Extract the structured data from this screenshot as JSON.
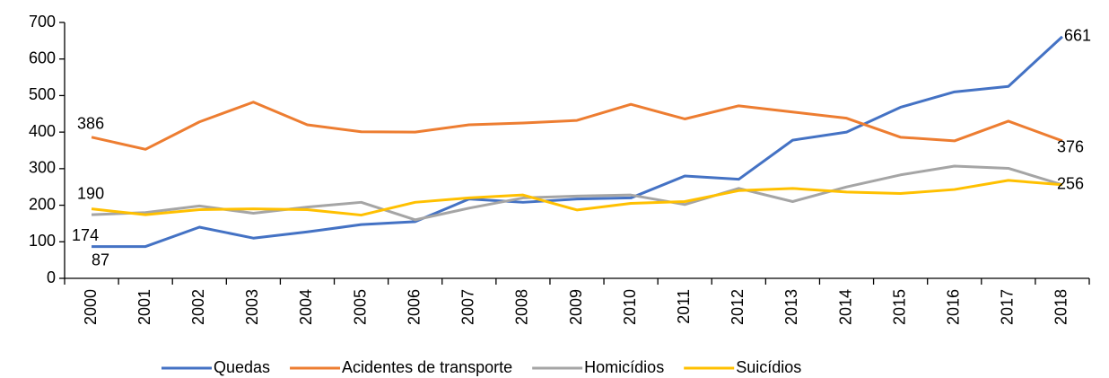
{
  "chart_data": {
    "type": "line",
    "categories": [
      "2000",
      "2001",
      "2002",
      "2003",
      "2004",
      "2005",
      "2006",
      "2007",
      "2008",
      "2009",
      "2010",
      "2011",
      "2012",
      "2013",
      "2014",
      "2015",
      "2016",
      "2017",
      "2018"
    ],
    "series": [
      {
        "name": "Quedas",
        "color": "#4472c4",
        "values": [
          87,
          87,
          140,
          110,
          127,
          147,
          155,
          217,
          208,
          217,
          220,
          280,
          271,
          378,
          400,
          468,
          510,
          525,
          661
        ],
        "value_labels": [
          "87",
          null,
          null,
          null,
          null,
          null,
          null,
          null,
          null,
          null,
          null,
          null,
          null,
          null,
          null,
          null,
          null,
          null,
          "661"
        ]
      },
      {
        "name": "Acidentes de transporte",
        "color": "#ed7d31",
        "values": [
          386,
          353,
          428,
          482,
          420,
          401,
          400,
          420,
          425,
          432,
          476,
          436,
          472,
          455,
          438,
          386,
          376,
          430,
          376
        ],
        "value_labels": [
          "386",
          null,
          null,
          null,
          null,
          null,
          null,
          null,
          null,
          null,
          null,
          null,
          null,
          null,
          null,
          null,
          null,
          null,
          "376"
        ]
      },
      {
        "name": "Homicídios",
        "color": "#a5a5a5",
        "values": [
          174,
          180,
          198,
          178,
          195,
          208,
          160,
          192,
          220,
          225,
          228,
          202,
          246,
          210,
          250,
          283,
          307,
          301,
          256
        ],
        "value_labels": [
          "174",
          null,
          null,
          null,
          null,
          null,
          null,
          null,
          null,
          null,
          null,
          null,
          null,
          null,
          null,
          null,
          null,
          null,
          "256"
        ]
      },
      {
        "name": "Suicídios",
        "color": "#ffc000",
        "values": [
          190,
          174,
          188,
          190,
          188,
          173,
          208,
          220,
          228,
          187,
          205,
          210,
          240,
          246,
          236,
          232,
          243,
          268,
          256
        ],
        "value_labels": [
          "190",
          null,
          null,
          null,
          null,
          null,
          null,
          null,
          null,
          null,
          null,
          null,
          null,
          null,
          null,
          null,
          null,
          null,
          null
        ]
      }
    ],
    "ylim": [
      0,
      700
    ],
    "yticks": [
      0,
      100,
      200,
      300,
      400,
      500,
      600,
      700
    ],
    "legend": "bottom"
  }
}
